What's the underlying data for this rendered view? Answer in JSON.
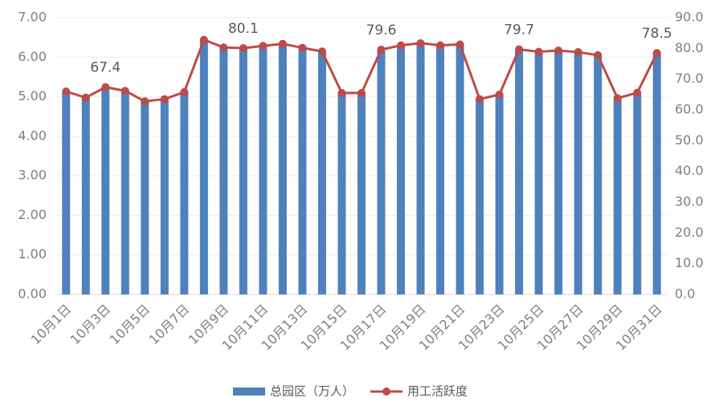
{
  "chart_data": {
    "type": "bar-line",
    "categories": [
      "10月1日",
      null,
      "10月3日",
      null,
      "10月5日",
      null,
      "10月7日",
      null,
      "10月9日",
      null,
      "10月11日",
      null,
      "10月13日",
      null,
      "10月15日",
      null,
      "10月17日",
      null,
      "10月19日",
      null,
      "10月21日",
      null,
      "10月23日",
      null,
      "10月25日",
      null,
      "10月27日",
      null,
      "10月29日",
      null,
      "10月31日"
    ],
    "series": [
      {
        "name": "总园区（万人）",
        "color": "#4f81bd",
        "type": "bar",
        "values": [
          5.1,
          4.97,
          5.25,
          5.15,
          4.9,
          4.95,
          5.1,
          6.45,
          6.25,
          6.23,
          6.28,
          6.33,
          6.23,
          6.15,
          5.1,
          5.1,
          6.2,
          6.3,
          6.35,
          6.3,
          6.32,
          4.95,
          5.05,
          6.2,
          6.15,
          6.17,
          6.13,
          6.05,
          4.97,
          5.1,
          6.1
        ]
      },
      {
        "name": "用工活跃度",
        "color": "#be4b48",
        "type": "line",
        "axis": "y2",
        "values": [
          66.0,
          64.0,
          67.4,
          66.2,
          62.8,
          63.5,
          65.8,
          82.8,
          80.3,
          80.1,
          80.8,
          81.5,
          80.2,
          79.0,
          65.5,
          65.5,
          79.6,
          81.0,
          81.7,
          81.0,
          81.3,
          63.5,
          65.0,
          79.7,
          78.9,
          79.3,
          78.8,
          77.8,
          63.8,
          65.6,
          78.5
        ],
        "value_labels": [
          null,
          null,
          "67.4",
          null,
          null,
          null,
          null,
          null,
          null,
          "80.1",
          null,
          null,
          null,
          null,
          null,
          null,
          "79.6",
          null,
          null,
          null,
          null,
          null,
          null,
          "79.7",
          null,
          null,
          null,
          null,
          null,
          null,
          "78.5"
        ]
      }
    ],
    "ylim": [
      0,
      7
    ],
    "yticks": [
      {
        "value": 0,
        "label": "0.00"
      },
      {
        "value": 1,
        "label": "1.00"
      },
      {
        "value": 2,
        "label": "2.00"
      },
      {
        "value": 3,
        "label": "3.00"
      },
      {
        "value": 4,
        "label": "4.00"
      },
      {
        "value": 5,
        "label": "5.00"
      },
      {
        "value": 6,
        "label": "6.00"
      },
      {
        "value": 7,
        "label": "7.00"
      }
    ],
    "y2lim": [
      0,
      90
    ],
    "y2ticks": [
      {
        "value": 0,
        "label": "0.0"
      },
      {
        "value": 10,
        "label": "10.0"
      },
      {
        "value": 20,
        "label": "20.0"
      },
      {
        "value": 30,
        "label": "30.0"
      },
      {
        "value": 40,
        "label": "40.0"
      },
      {
        "value": 50,
        "label": "50.0"
      },
      {
        "value": 60,
        "label": "60.0"
      },
      {
        "value": 70,
        "label": "70.0"
      },
      {
        "value": 80,
        "label": "80.0"
      },
      {
        "value": 90,
        "label": "90.0"
      }
    ],
    "grid": true,
    "legend": "bottom"
  }
}
